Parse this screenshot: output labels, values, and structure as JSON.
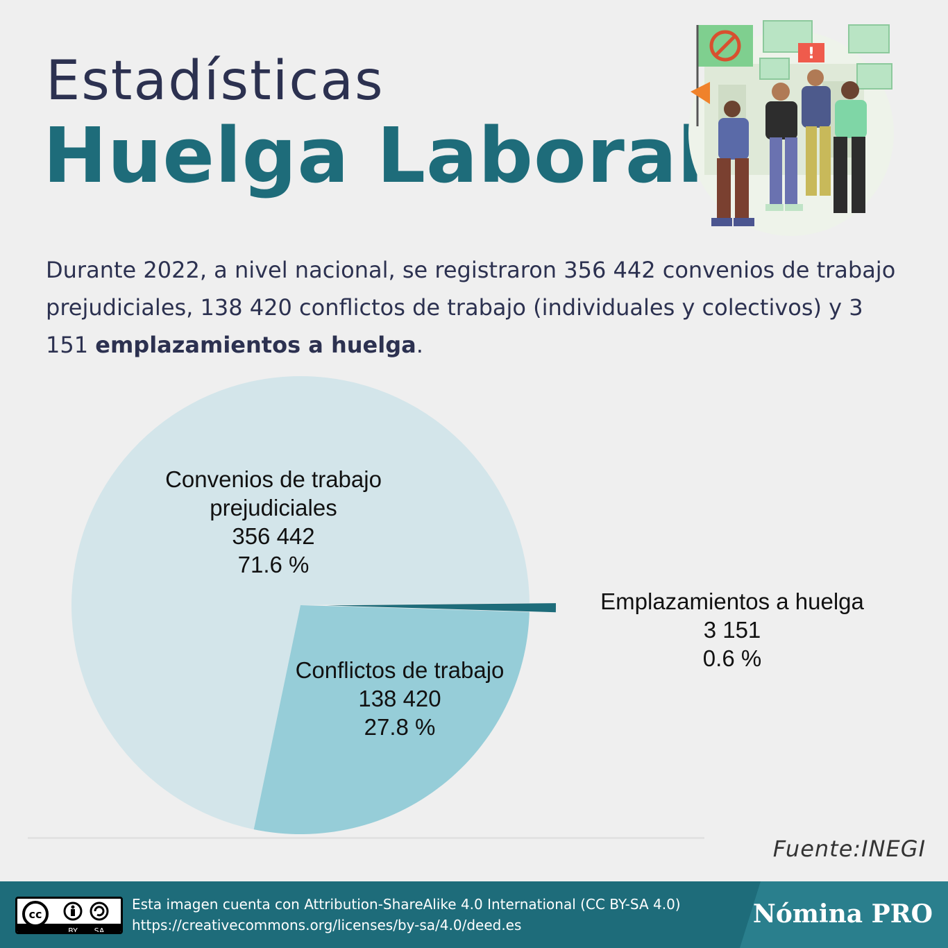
{
  "header": {
    "title_line1": "Estadísticas",
    "title_line2": "Huelga Laboral"
  },
  "intro": {
    "part1": "Durante 2022, a nivel nacional, se registraron 356 442 convenios de trabajo prejudiciales, 138 420 conflictos de trabajo (individuales y colectivos) y 3 151 ",
    "bold": "emplazamientos a huelga",
    "part2": "."
  },
  "chart_data": {
    "type": "pie",
    "categories": [
      "Convenios de trabajo prejudiciales",
      "Conflictos de trabajo",
      "Emplazamientos a huelga"
    ],
    "values": [
      356442,
      138420,
      3151
    ],
    "percentages": [
      71.6,
      27.8,
      0.6
    ],
    "colors": [
      "#d3e5ea",
      "#96cdd8",
      "#1e6c7a"
    ],
    "labels": [
      {
        "lines": [
          "Convenios de trabajo",
          "prejudiciales",
          "356 442",
          "71.6  %"
        ]
      },
      {
        "lines": [
          "Conflictos de trabajo",
          "138 420",
          "27.8  %"
        ]
      },
      {
        "lines": [
          "Emplazamientos a huelga",
          "3 151",
          "0.6  %"
        ]
      }
    ]
  },
  "source": "Fuente:INEGI",
  "footer": {
    "license_line1": "Esta imagen cuenta con Attribution-ShareAlike 4.0 International (CC BY-SA 4.0)",
    "license_line2": "https://creativecommons.org/licenses/by-sa/4.0/deed.es",
    "cc_label": "cc",
    "by_label": "BY",
    "sa_label": "SA",
    "brand": "Nómina PRO"
  }
}
